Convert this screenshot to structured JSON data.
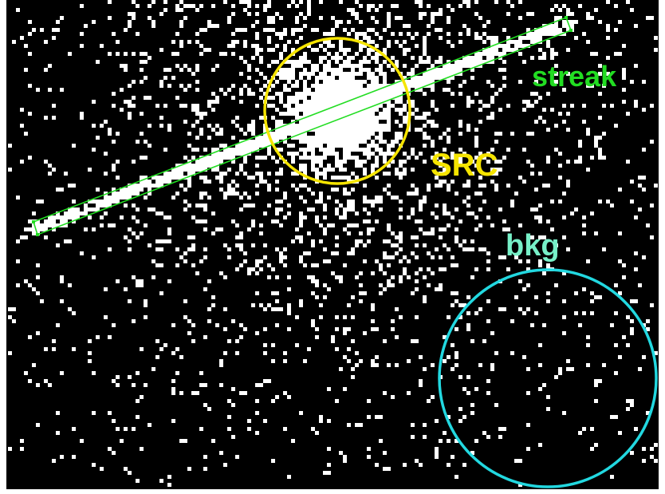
{
  "regions": [
    {
      "label": "streak"
    },
    {
      "label": "SRC"
    },
    {
      "label": "bkg"
    }
  ]
}
